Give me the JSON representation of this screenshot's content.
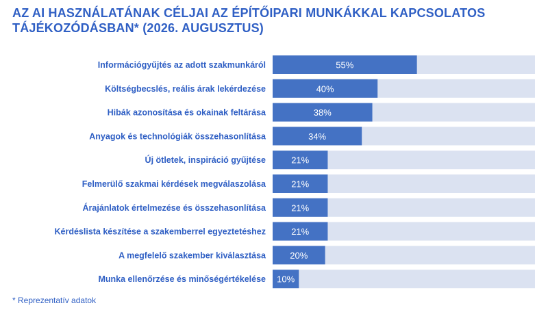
{
  "title_line1": "AZ AI HASZNÁLATÁNAK CÉLJAI AZ ÉPÍTŐIPARI MUNKÁKKAL KAPCSOLATOS",
  "title_line2": "TÁJÉKOZÓDÁSBAN* (2026. AUGUSZTUS)",
  "footnote": "* Reprezentatív adatok",
  "colors": {
    "accent": "#2f5fc4",
    "bar": "#4472c4",
    "track": "#dbe2f1",
    "label": "#2f5fc4"
  },
  "chart_data": {
    "type": "bar",
    "orientation": "horizontal",
    "xlim": [
      0,
      100
    ],
    "categories": [
      "Információgyűjtés az adott szakmunkáról",
      "Költségbecslés, reális árak lekérdezése",
      "Hibák azonosítása és okainak feltárása",
      "Anyagok és technológiák összehasonlítása",
      "Új ötletek, inspiráció gyűjtése",
      "Felmerülő szakmai kérdések megválaszolása",
      "Árajánlatok értelmezése és összehasonlítása",
      "Kérdéslista készítése a szakemberrel egyeztetéshez",
      "A megfelelő szakember kiválasztása",
      "Munka ellenőrzése és minőségértékelése"
    ],
    "values": [
      55,
      40,
      38,
      34,
      21,
      21,
      21,
      21,
      20,
      10
    ],
    "data_labels": [
      "55%",
      "40%",
      "38%",
      "34%",
      "21%",
      "21%",
      "21%",
      "21%",
      "20%",
      "10%"
    ]
  }
}
